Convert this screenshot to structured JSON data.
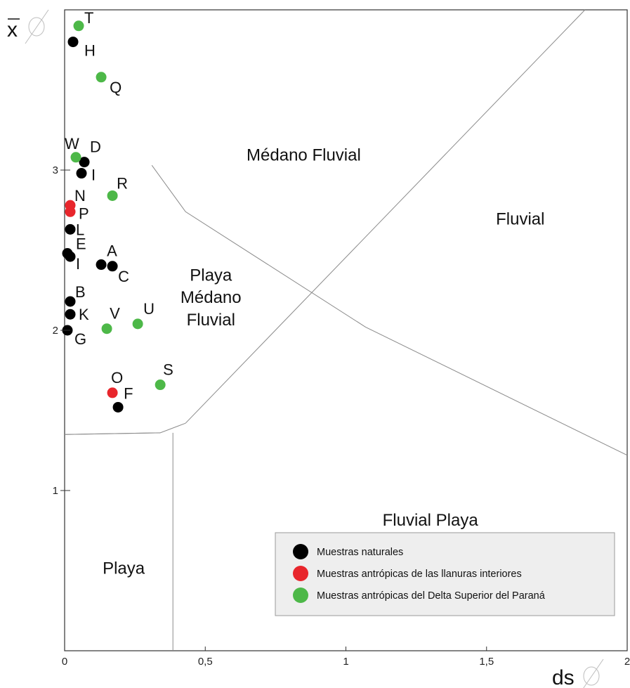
{
  "chart_data": {
    "type": "scatter",
    "xlabel": "ds",
    "ylabel": "x",
    "xlim": [
      0,
      2
    ],
    "ylim": [
      0,
      4
    ],
    "x_ticks": [
      {
        "value": 0,
        "label": "0"
      },
      {
        "value": 0.5,
        "label": "0,5"
      },
      {
        "value": 1,
        "label": "1"
      },
      {
        "value": 1.5,
        "label": "1,5"
      },
      {
        "value": 2,
        "label": "2"
      }
    ],
    "y_ticks": [
      {
        "value": 1,
        "label": "1"
      },
      {
        "value": 2,
        "label": "2"
      },
      {
        "value": 3,
        "label": "3"
      }
    ],
    "regions": [
      {
        "label": "Médano Fluvial",
        "x": 0.85,
        "y": 3.06
      },
      {
        "label": "Fluvial",
        "x": 1.62,
        "y": 2.66
      },
      {
        "label": "Playa",
        "x": 0.52,
        "y": 2.31
      },
      {
        "label": "Médano",
        "x": 0.52,
        "y": 2.17
      },
      {
        "label": "Fluvial",
        "x": 0.52,
        "y": 2.03
      },
      {
        "label": "Fluvial Playa",
        "x": 1.3,
        "y": 0.78
      },
      {
        "label": "Playa",
        "x": 0.21,
        "y": 0.48
      }
    ],
    "boundaries": [
      [
        [
          0.31,
          3.03
        ],
        [
          0.43,
          2.74
        ],
        [
          1.07,
          2.02
        ],
        [
          2.0,
          1.22
        ]
      ],
      [
        [
          0.43,
          1.42
        ],
        [
          1.85,
          4.0
        ]
      ],
      [
        [
          0.0,
          1.35
        ],
        [
          0.34,
          1.36
        ],
        [
          0.43,
          1.42
        ]
      ],
      [
        [
          0.0,
          1.35
        ],
        [
          0.34,
          1.36
        ]
      ],
      [
        [
          0.385,
          1.36
        ],
        [
          0.385,
          0.0
        ]
      ]
    ],
    "legend": {
      "placement": "bottom-right",
      "entries": [
        {
          "name": "Muestras naturales",
          "color": "#000000"
        },
        {
          "name": "Muestras antrópicas de las llanuras interiores",
          "color": "#e8262c"
        },
        {
          "name": "Muestras antrópicas del Delta Superior del Paraná",
          "color": "#4db848"
        }
      ]
    },
    "series": [
      {
        "color": "#000000",
        "points": [
          {
            "label": "H",
            "x": 0.03,
            "y": 3.8,
            "dx": 16,
            "dy": 20
          },
          {
            "label": "D",
            "x": 0.07,
            "y": 3.05,
            "dx": 8,
            "dy": -14
          },
          {
            "label": "I",
            "x": 0.06,
            "y": 2.98,
            "dx": 14,
            "dy": 10
          },
          {
            "label": "L",
            "x": 0.02,
            "y": 2.63,
            "dx": 8,
            "dy": 8
          },
          {
            "label": "E",
            "x": 0.01,
            "y": 2.48,
            "dx": 12,
            "dy": -6
          },
          {
            "label": "I",
            "x": 0.02,
            "y": 2.46,
            "dx": 8,
            "dy": 18
          },
          {
            "label": "A",
            "x": 0.13,
            "y": 2.41,
            "dx": 8,
            "dy": -12
          },
          {
            "label": "C",
            "x": 0.17,
            "y": 2.4,
            "dx": 8,
            "dy": 22
          },
          {
            "label": "B",
            "x": 0.02,
            "y": 2.18,
            "dx": 7,
            "dy": -6
          },
          {
            "label": "K",
            "x": 0.02,
            "y": 2.1,
            "dx": 12,
            "dy": 8
          },
          {
            "label": "G",
            "x": 0.01,
            "y": 2.0,
            "dx": 10,
            "dy": 20
          },
          {
            "label": "F",
            "x": 0.19,
            "y": 1.52,
            "dx": 8,
            "dy": -12
          }
        ]
      },
      {
        "color": "#e8262c",
        "points": [
          {
            "label": "N",
            "x": 0.02,
            "y": 2.78,
            "dx": 6,
            "dy": -6
          },
          {
            "label": "P",
            "x": 0.02,
            "y": 2.74,
            "dx": 12,
            "dy": 10
          },
          {
            "label": "O",
            "x": 0.17,
            "y": 1.61,
            "dx": -2,
            "dy": -14
          }
        ]
      },
      {
        "color": "#4db848",
        "points": [
          {
            "label": "T",
            "x": 0.05,
            "y": 3.9,
            "dx": 8,
            "dy": -4
          },
          {
            "label": "Q",
            "x": 0.13,
            "y": 3.58,
            "dx": 12,
            "dy": 22
          },
          {
            "label": "W",
            "x": 0.04,
            "y": 3.08,
            "dx": -16,
            "dy": -12
          },
          {
            "label": "R",
            "x": 0.17,
            "y": 2.84,
            "dx": 6,
            "dy": -10
          },
          {
            "label": "V",
            "x": 0.15,
            "y": 2.01,
            "dx": 4,
            "dy": -14
          },
          {
            "label": "U",
            "x": 0.26,
            "y": 2.04,
            "dx": 8,
            "dy": -14
          },
          {
            "label": "S",
            "x": 0.34,
            "y": 1.66,
            "dx": 4,
            "dy": -14
          }
        ]
      }
    ]
  }
}
